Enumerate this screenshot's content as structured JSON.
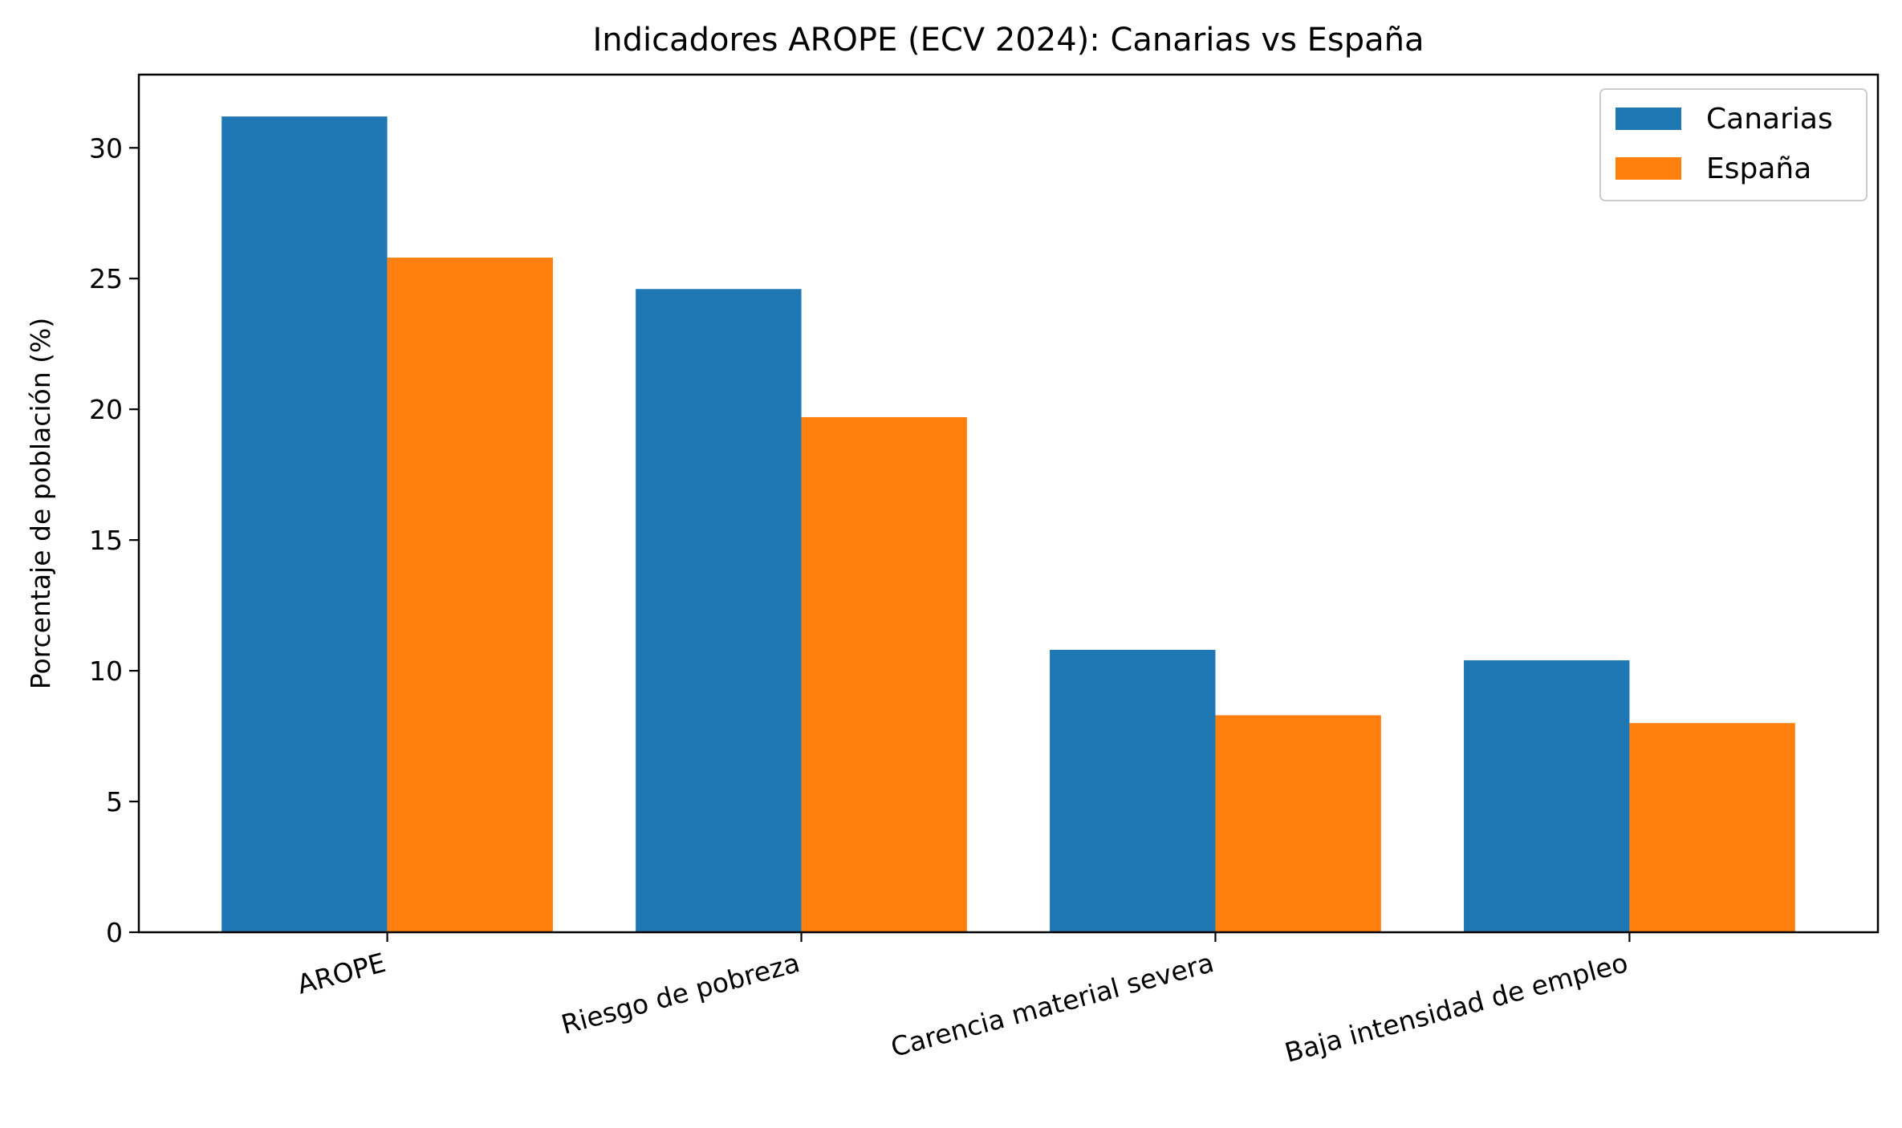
{
  "chart_data": {
    "type": "bar",
    "title": "Indicadores AROPE (ECV 2024): Canarias vs España",
    "xlabel": "",
    "ylabel": "Porcentaje de población (%)",
    "categories": [
      "AROPE",
      "Riesgo de pobreza",
      "Carencia material severa",
      "Baja intensidad de empleo"
    ],
    "series": [
      {
        "name": "Canarias",
        "color": "#1f77b4",
        "values": [
          31.2,
          24.6,
          10.8,
          10.4
        ]
      },
      {
        "name": "España",
        "color": "#ff7f0e",
        "values": [
          25.8,
          19.7,
          8.3,
          8.0
        ]
      }
    ],
    "ylim": [
      0,
      32.8
    ],
    "yticks": [
      0,
      5,
      10,
      15,
      20,
      25,
      30
    ],
    "grid": false,
    "legend": "top-right"
  }
}
